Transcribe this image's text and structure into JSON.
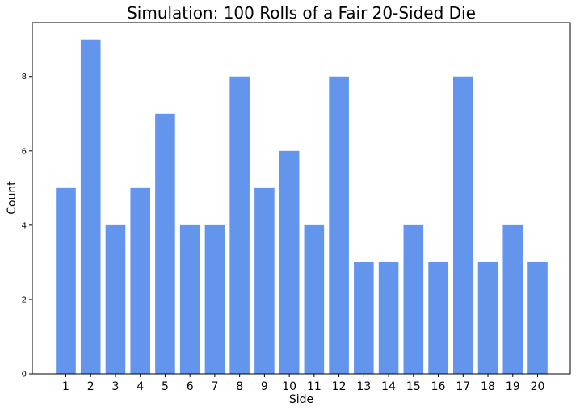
{
  "chart_data": {
    "type": "bar",
    "title": "Simulation: 100 Rolls of a Fair 20-Sided Die",
    "xlabel": "Side",
    "ylabel": "Count",
    "categories": [
      "1",
      "2",
      "3",
      "4",
      "5",
      "6",
      "7",
      "8",
      "9",
      "10",
      "11",
      "12",
      "13",
      "14",
      "15",
      "16",
      "17",
      "18",
      "19",
      "20"
    ],
    "values": [
      5,
      9,
      4,
      5,
      7,
      4,
      4,
      8,
      5,
      6,
      4,
      8,
      3,
      3,
      4,
      3,
      8,
      3,
      4,
      3
    ],
    "yticks": [
      0,
      2,
      4,
      6,
      8
    ],
    "ylim": [
      0,
      9.45
    ],
    "grid": false,
    "bar_color": "#6495ED"
  }
}
